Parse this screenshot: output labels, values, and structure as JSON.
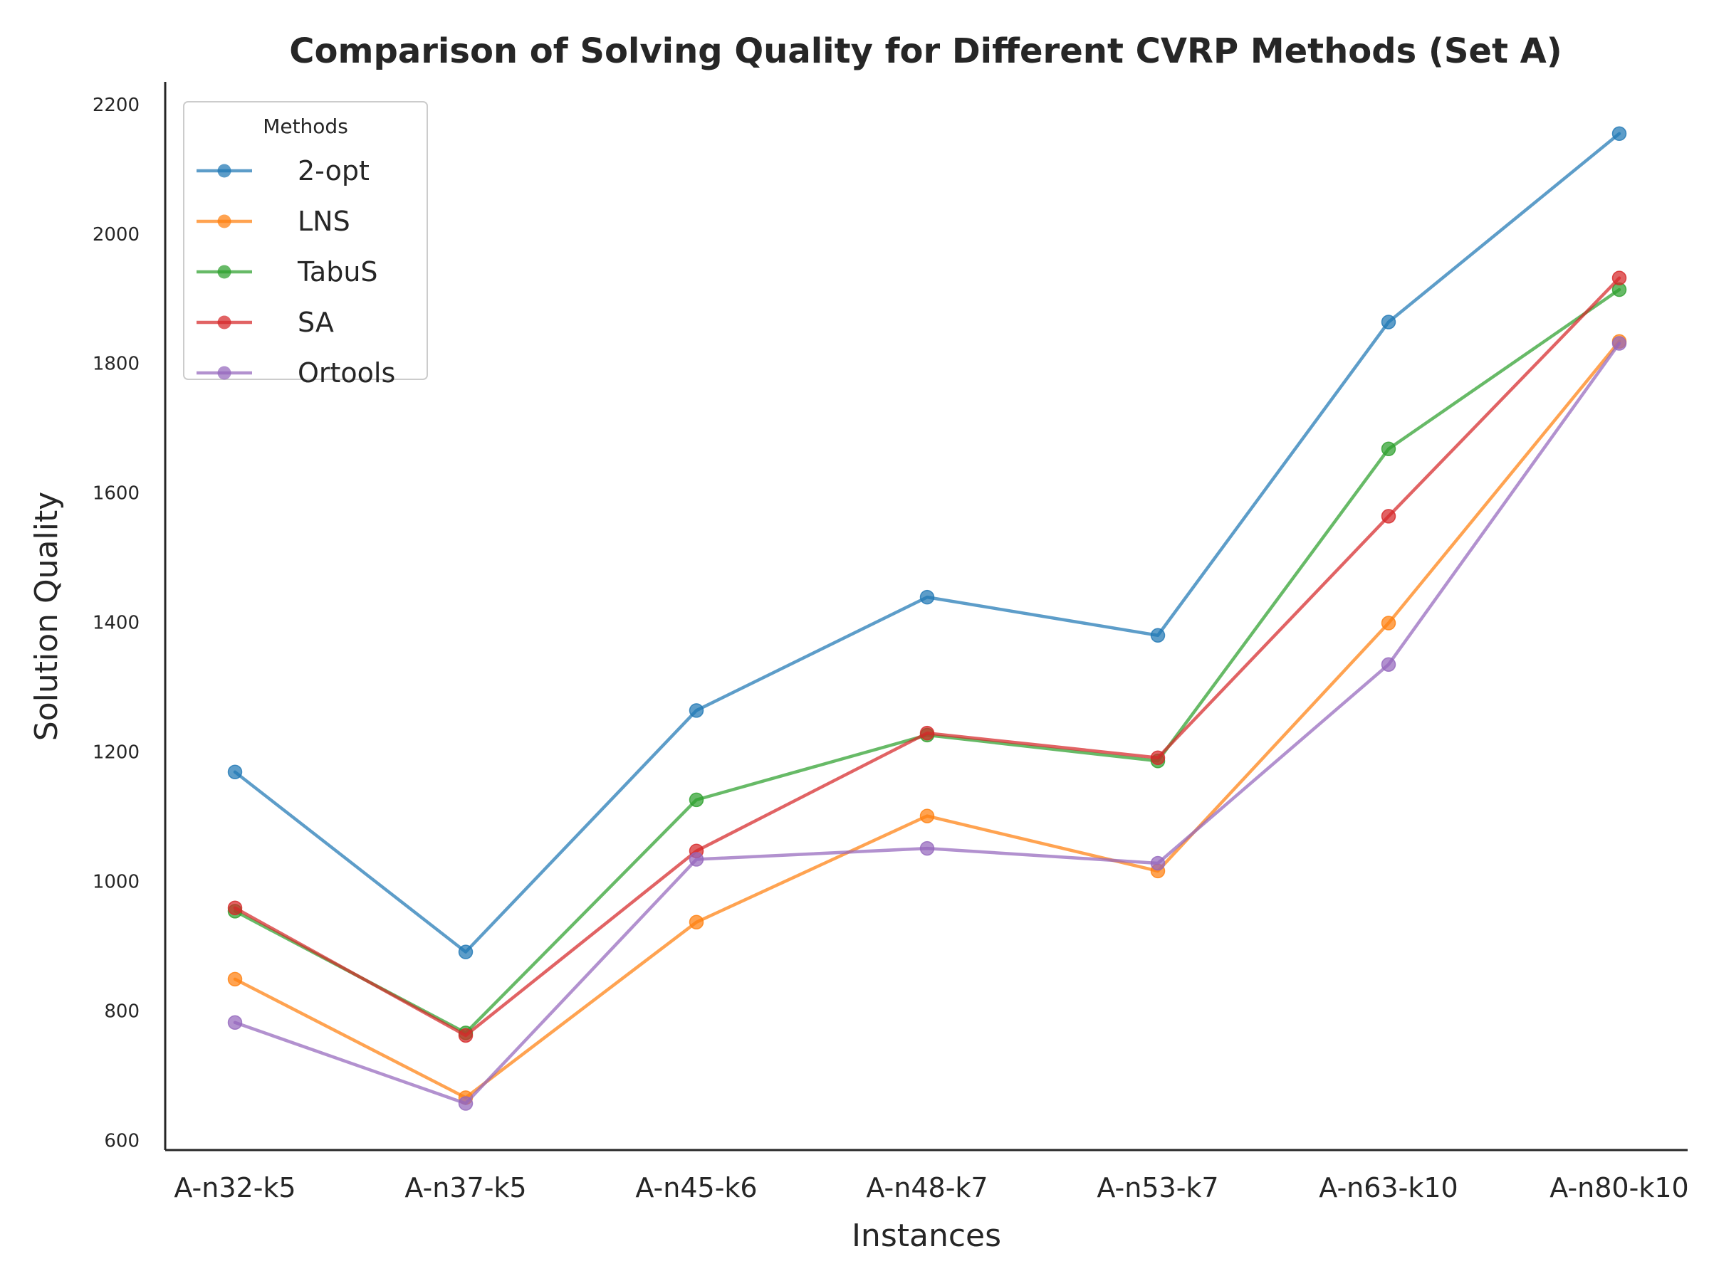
{
  "chart_data": {
    "type": "line",
    "title": "Comparison of Solving Quality for Different CVRP Methods (Set A)",
    "xlabel": "Instances",
    "ylabel": "Solution Quality",
    "categories": [
      "A-n32-k5",
      "A-n37-k5",
      "A-n45-k6",
      "A-n48-k7",
      "A-n53-k7",
      "A-n63-k10",
      "A-n80-k10"
    ],
    "ylim": [
      585,
      2235
    ],
    "yticks": [
      600,
      800,
      1000,
      1200,
      1400,
      1600,
      1800,
      2000,
      2200
    ],
    "grid": false,
    "legend": {
      "title": "Methods",
      "placement": "top-left"
    },
    "series": [
      {
        "name": "2-opt",
        "color": "#1f77b4",
        "values": [
          1169,
          891,
          1264,
          1439,
          1380,
          1864,
          2155
        ]
      },
      {
        "name": "LNS",
        "color": "#ff7f0e",
        "values": [
          849,
          666,
          937,
          1101,
          1016,
          1399,
          1834
        ]
      },
      {
        "name": "TabuS",
        "color": "#2ca02c",
        "values": [
          954,
          766,
          1126,
          1226,
          1186,
          1668,
          1914
        ]
      },
      {
        "name": "SA",
        "color": "#d62728",
        "values": [
          959,
          762,
          1047,
          1229,
          1191,
          1564,
          1932
        ]
      },
      {
        "name": "Ortools",
        "color": "#9467bd",
        "values": [
          782,
          657,
          1034,
          1051,
          1028,
          1335,
          1831
        ]
      }
    ]
  }
}
